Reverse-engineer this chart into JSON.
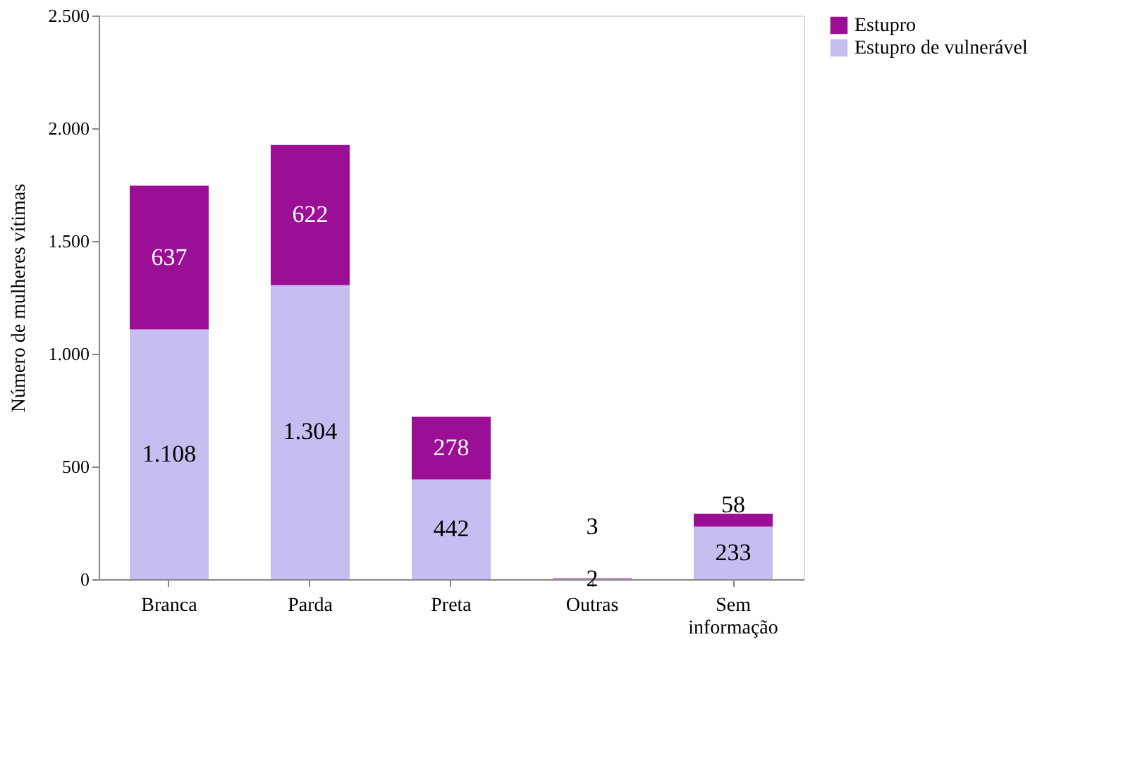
{
  "chart_data": {
    "type": "bar",
    "stacked": true,
    "ylabel": "Número de mulheres vítimas",
    "categories": [
      "Branca",
      "Parda",
      "Preta",
      "Outras",
      "Sem informação"
    ],
    "series": [
      {
        "name": "Estupro de vulnerável",
        "color": "#c8bdf0",
        "values": [
          1108,
          1304,
          442,
          2,
          233
        ],
        "value_labels": [
          "1.108",
          "1.304",
          "442",
          "2",
          "233"
        ]
      },
      {
        "name": "Estupro",
        "color": "#9b0f96",
        "values": [
          637,
          622,
          278,
          3,
          58
        ],
        "value_labels": [
          "637",
          "622",
          "278",
          "3",
          "58"
        ]
      }
    ],
    "ylim": [
      0,
      2500
    ],
    "yticks": [
      0,
      500,
      {
        "value": 1000,
        "label": "1.000"
      },
      {
        "value": 1500,
        "label": "1.500"
      },
      {
        "value": 2000,
        "label": "2.000"
      },
      {
        "value": 2500,
        "label": "2.500"
      }
    ],
    "legend": "right",
    "grid": false
  }
}
